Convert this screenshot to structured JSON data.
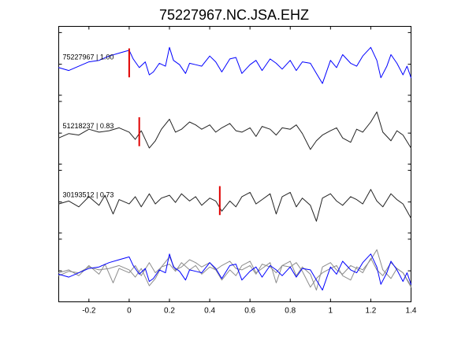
{
  "chart_data": {
    "type": "line",
    "title": "75227967.NC.JSA.EHZ",
    "xlabel": "",
    "ylabel": "",
    "xlim": [
      -0.35,
      1.4
    ],
    "xticks": [
      -0.2,
      0,
      0.2,
      0.4,
      0.6,
      0.8,
      1,
      1.2,
      1.4
    ],
    "xtick_labels": [
      "-0.2",
      "0",
      "0.2",
      "0.4",
      "0.6",
      "0.8",
      "1",
      "1.2",
      "1.4"
    ],
    "grid": false,
    "panels": 4,
    "series": [
      {
        "name": "75227967",
        "label": "75227967 | 1.00",
        "panel": 0,
        "pick_time": 0.0,
        "color": "#0000ff",
        "x": [
          -0.35,
          -0.3,
          -0.25,
          -0.2,
          -0.15,
          -0.1,
          -0.05,
          0,
          0.02,
          0.05,
          0.08,
          0.1,
          0.12,
          0.15,
          0.18,
          0.2,
          0.22,
          0.25,
          0.28,
          0.3,
          0.33,
          0.36,
          0.4,
          0.43,
          0.46,
          0.5,
          0.53,
          0.56,
          0.6,
          0.63,
          0.66,
          0.7,
          0.73,
          0.76,
          0.8,
          0.83,
          0.86,
          0.9,
          0.93,
          0.96,
          1,
          1.03,
          1.06,
          1.1,
          1.13,
          1.16,
          1.2,
          1.23,
          1.25,
          1.28,
          1.3,
          1.33,
          1.36,
          1.38,
          1.4
        ],
        "y": [
          0.05,
          -0.05,
          0.1,
          0.25,
          0.3,
          0.45,
          0.55,
          0.65,
          0.35,
          0.05,
          0.25,
          -0.2,
          -0.1,
          0.2,
          0.1,
          0.75,
          0.3,
          0.15,
          -0.15,
          0.2,
          0.15,
          0.1,
          0.45,
          0.25,
          -0.1,
          0.35,
          0.4,
          -0.15,
          0.15,
          0.3,
          -0.05,
          0.35,
          0.2,
          0.0,
          0.3,
          -0.05,
          0.25,
          0.2,
          -0.15,
          -0.5,
          0.3,
          0.05,
          0.5,
          0.2,
          0.1,
          0.45,
          0.75,
          0.3,
          -0.3,
          0.1,
          0.5,
          0.2,
          -0.2,
          0.1,
          -0.3
        ]
      },
      {
        "name": "51218237",
        "label": "51218237 | 0.83",
        "panel": 1,
        "pick_time": 0.05,
        "color": "#222222",
        "x": [
          -0.35,
          -0.3,
          -0.25,
          -0.2,
          -0.15,
          -0.1,
          -0.05,
          0,
          0.03,
          0.06,
          0.1,
          0.13,
          0.16,
          0.2,
          0.23,
          0.26,
          0.3,
          0.33,
          0.36,
          0.4,
          0.43,
          0.46,
          0.5,
          0.53,
          0.56,
          0.6,
          0.63,
          0.66,
          0.7,
          0.73,
          0.76,
          0.8,
          0.83,
          0.86,
          0.9,
          0.93,
          0.96,
          1,
          1.03,
          1.06,
          1.1,
          1.13,
          1.16,
          1.2,
          1.23,
          1.26,
          1.3,
          1.33,
          1.36,
          1.4
        ],
        "y": [
          0.0,
          0.15,
          0.1,
          0.3,
          0.2,
          0.25,
          0.35,
          0.2,
          -0.05,
          0.25,
          -0.35,
          -0.1,
          0.3,
          0.65,
          0.2,
          0.3,
          0.55,
          0.45,
          0.3,
          0.45,
          0.2,
          0.35,
          0.5,
          0.25,
          0.2,
          0.35,
          0.05,
          0.4,
          0.3,
          0.1,
          0.35,
          0.3,
          0.45,
          0.15,
          -0.4,
          -0.1,
          0.1,
          0.25,
          0.35,
          0.0,
          -0.15,
          0.3,
          0.2,
          0.55,
          0.9,
          0.2,
          -0.1,
          0.25,
          0.1,
          -0.35
        ]
      },
      {
        "name": "30193512",
        "label": "30193512 | 0.73",
        "panel": 2,
        "pick_time": 0.45,
        "color": "#222222",
        "x": [
          -0.35,
          -0.3,
          -0.25,
          -0.2,
          -0.15,
          -0.12,
          -0.08,
          -0.05,
          0,
          0.03,
          0.06,
          0.1,
          0.13,
          0.16,
          0.2,
          0.23,
          0.26,
          0.3,
          0.33,
          0.36,
          0.4,
          0.43,
          0.46,
          0.5,
          0.53,
          0.56,
          0.6,
          0.63,
          0.66,
          0.7,
          0.73,
          0.76,
          0.8,
          0.83,
          0.86,
          0.9,
          0.93,
          0.96,
          1,
          1.03,
          1.06,
          1.1,
          1.13,
          1.16,
          1.2,
          1.23,
          1.26,
          1.3,
          1.33,
          1.36,
          1.4
        ],
        "y": [
          0.1,
          0.2,
          0.0,
          0.35,
          0.05,
          0.4,
          -0.25,
          0.25,
          0.1,
          0.35,
          0.0,
          0.45,
          0.1,
          0.3,
          0.4,
          0.15,
          0.45,
          0.2,
          0.35,
          0.05,
          0.3,
          0.2,
          -0.15,
          0.2,
          0.0,
          0.35,
          0.5,
          0.1,
          0.25,
          0.45,
          -0.25,
          0.35,
          0.5,
          0.0,
          0.3,
          0.05,
          -0.5,
          0.3,
          0.45,
          0.2,
          0.05,
          0.35,
          0.25,
          0.1,
          0.6,
          0.2,
          0.0,
          0.45,
          0.25,
          0.1,
          -0.4
        ]
      },
      {
        "name": "75227967",
        "label": "",
        "panel": 3,
        "pick_time": null,
        "color": "#0000ff",
        "x": [
          -0.35,
          -0.3,
          -0.25,
          -0.2,
          -0.15,
          -0.1,
          -0.05,
          0,
          0.02,
          0.05,
          0.08,
          0.1,
          0.12,
          0.15,
          0.18,
          0.2,
          0.22,
          0.25,
          0.28,
          0.3,
          0.33,
          0.36,
          0.4,
          0.43,
          0.46,
          0.5,
          0.53,
          0.56,
          0.6,
          0.63,
          0.66,
          0.7,
          0.73,
          0.76,
          0.8,
          0.83,
          0.86,
          0.9,
          0.93,
          0.96,
          1,
          1.03,
          1.06,
          1.1,
          1.13,
          1.16,
          1.2,
          1.23,
          1.25,
          1.28,
          1.3,
          1.33,
          1.36,
          1.38,
          1.4
        ],
        "y": [
          0.05,
          -0.05,
          0.1,
          0.25,
          0.3,
          0.45,
          0.55,
          0.65,
          0.35,
          0.05,
          0.25,
          -0.2,
          -0.1,
          0.2,
          0.1,
          0.75,
          0.3,
          0.15,
          -0.15,
          0.2,
          0.15,
          0.1,
          0.45,
          0.25,
          -0.1,
          0.35,
          0.4,
          -0.15,
          0.15,
          0.3,
          -0.05,
          0.35,
          0.2,
          0.0,
          0.3,
          -0.05,
          0.25,
          0.2,
          -0.15,
          -0.5,
          0.3,
          0.05,
          0.5,
          0.2,
          0.1,
          0.45,
          0.75,
          0.3,
          -0.3,
          0.1,
          0.5,
          0.2,
          -0.2,
          0.1,
          -0.3
        ]
      },
      {
        "name": "51218237",
        "label": "",
        "panel": 3,
        "pick_time": null,
        "color": "#8c8c8c",
        "x": [
          -0.35,
          -0.3,
          -0.25,
          -0.2,
          -0.15,
          -0.1,
          -0.05,
          0,
          0.03,
          0.06,
          0.1,
          0.13,
          0.16,
          0.2,
          0.23,
          0.26,
          0.3,
          0.33,
          0.36,
          0.4,
          0.43,
          0.46,
          0.5,
          0.53,
          0.56,
          0.6,
          0.63,
          0.66,
          0.7,
          0.73,
          0.76,
          0.8,
          0.83,
          0.86,
          0.9,
          0.93,
          0.96,
          1,
          1.03,
          1.06,
          1.1,
          1.13,
          1.16,
          1.2,
          1.23,
          1.26,
          1.3,
          1.33,
          1.36,
          1.4
        ],
        "y": [
          0.0,
          0.15,
          0.1,
          0.3,
          0.2,
          0.25,
          0.35,
          0.2,
          -0.05,
          0.25,
          -0.35,
          -0.1,
          0.3,
          0.65,
          0.2,
          0.3,
          0.55,
          0.45,
          0.3,
          0.45,
          0.2,
          0.35,
          0.5,
          0.25,
          0.2,
          0.35,
          0.05,
          0.4,
          0.3,
          0.1,
          0.35,
          0.3,
          0.45,
          0.15,
          -0.4,
          -0.1,
          0.1,
          0.25,
          0.35,
          0.0,
          -0.15,
          0.3,
          0.2,
          0.55,
          0.9,
          0.2,
          -0.1,
          0.25,
          0.1,
          -0.35
        ]
      },
      {
        "name": "30193512",
        "label": "",
        "panel": 3,
        "pick_time": null,
        "color": "#8c8c8c",
        "x": [
          -0.35,
          -0.3,
          -0.25,
          -0.2,
          -0.15,
          -0.12,
          -0.08,
          -0.05,
          0,
          0.03,
          0.06,
          0.1,
          0.13,
          0.16,
          0.2,
          0.23,
          0.26,
          0.3,
          0.33,
          0.36,
          0.4,
          0.43,
          0.46,
          0.5,
          0.53,
          0.56,
          0.6,
          0.63,
          0.66,
          0.7,
          0.73,
          0.76,
          0.8,
          0.83,
          0.86,
          0.9,
          0.93,
          0.96,
          1,
          1.03,
          1.06,
          1.1,
          1.13,
          1.16,
          1.2,
          1.23,
          1.26,
          1.3,
          1.33,
          1.36,
          1.4
        ],
        "y": [
          0.1,
          0.2,
          0.0,
          0.35,
          0.05,
          0.4,
          -0.25,
          0.25,
          0.1,
          0.35,
          0.0,
          0.45,
          0.1,
          0.3,
          0.4,
          0.15,
          0.45,
          0.2,
          0.35,
          0.05,
          0.3,
          0.2,
          -0.15,
          0.2,
          0.0,
          0.35,
          0.5,
          0.1,
          0.25,
          0.45,
          -0.25,
          0.35,
          0.5,
          0.0,
          0.3,
          0.05,
          -0.5,
          0.3,
          0.45,
          0.2,
          0.05,
          0.35,
          0.25,
          0.1,
          0.6,
          0.2,
          0.0,
          0.45,
          0.25,
          0.1,
          -0.4
        ]
      }
    ]
  }
}
